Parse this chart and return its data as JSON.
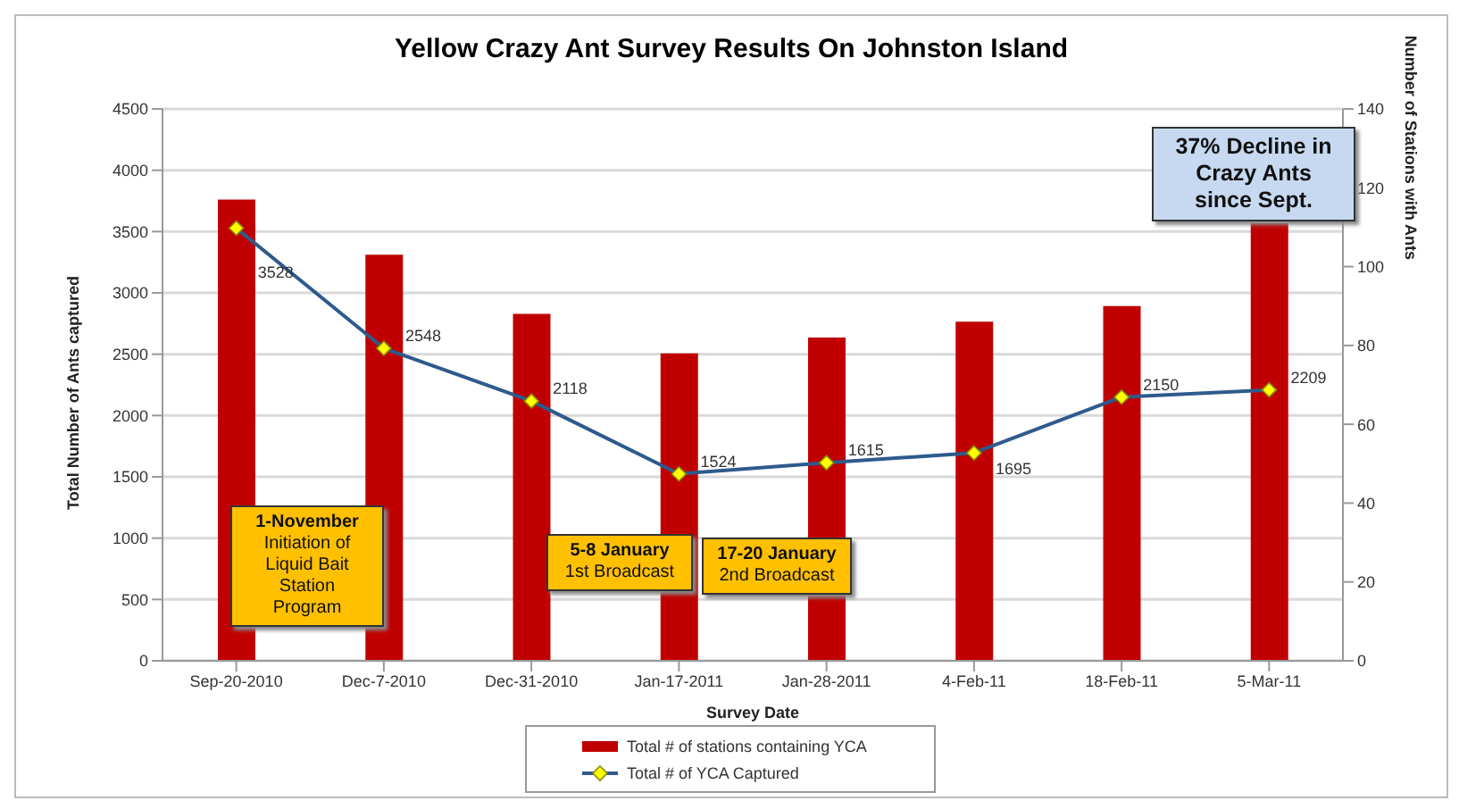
{
  "chart_data": {
    "type": "bar",
    "title": "Yellow Crazy Ant Survey Results On Johnston Island",
    "xlabel": "Survey Date",
    "ylabel": "Total Number of Ants captured",
    "y2label": "Number of Stations with Ants",
    "categories": [
      "Sep-20-2010",
      "Dec-7-2010",
      "Dec-31-2010",
      "Jan-17-2011",
      "Jan-28-2011",
      "4-Feb-11",
      "18-Feb-11",
      "5-Mar-11"
    ],
    "series": [
      {
        "name": "Total # of stations containing YCA",
        "axis": "y2",
        "color": "#c00000",
        "values": [
          117,
          103,
          88,
          78,
          82,
          86,
          90,
          111
        ]
      },
      {
        "name": "Total # of YCA Captured",
        "type": "line",
        "color": "#2e5a8c",
        "values": [
          3528,
          2548,
          2118,
          1524,
          1615,
          1695,
          2150,
          2209
        ],
        "value_labels": [
          "3528",
          "2548",
          "2118",
          "1524",
          "1615",
          "1695",
          "2150",
          "2209"
        ]
      }
    ],
    "ylim": [
      0,
      4500
    ],
    "yticks": [
      0,
      500,
      1000,
      1500,
      2000,
      2500,
      3000,
      3500,
      4000,
      4500
    ],
    "y2lim": [
      0,
      140
    ],
    "y2ticks": [
      0,
      20,
      40,
      60,
      80,
      100,
      120,
      140
    ],
    "grid": "y",
    "legend": "bottom",
    "marker": "diamond",
    "line_style": "solid",
    "annotations": [
      "1-November\nInitiation of\nLiquid Bait Station\nProgram",
      "5-8 January\n1st Broadcast",
      "17-20 January\n2nd Broadcast",
      "37% Decline in\nCrazy Ants\nsince Sept."
    ]
  }
}
